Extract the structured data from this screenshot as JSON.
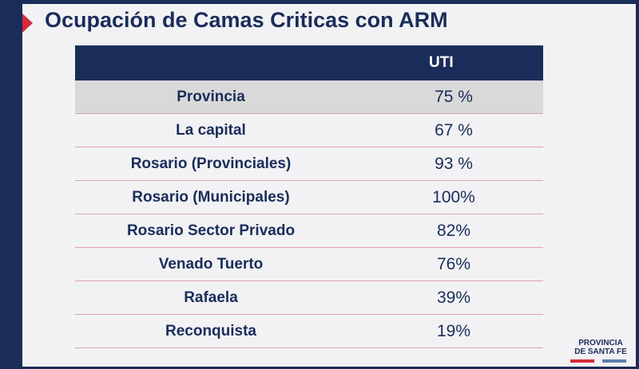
{
  "title": "Ocupación de Camas Criticas con ARM",
  "table": {
    "header_col": "UTI",
    "rows": [
      {
        "name": "Provincia",
        "value": "75 %"
      },
      {
        "name": "La capital",
        "value": "67 %"
      },
      {
        "name": "Rosario (Provinciales)",
        "value": "93 %"
      },
      {
        "name": "Rosario (Municipales)",
        "value": "100%"
      },
      {
        "name": "Rosario Sector Privado",
        "value": "82%"
      },
      {
        "name": "Venado Tuerto",
        "value": "76%"
      },
      {
        "name": "Rafaela",
        "value": "39%"
      },
      {
        "name": "Reconquista",
        "value": "19%"
      }
    ]
  },
  "logo": {
    "line1": "PROVINCIA",
    "line2": "DE SANTA FE"
  },
  "colors": {
    "navy": "#1a2d5a",
    "accent_red": "#d62b3a",
    "row_highlight": "#d9d9d9"
  }
}
